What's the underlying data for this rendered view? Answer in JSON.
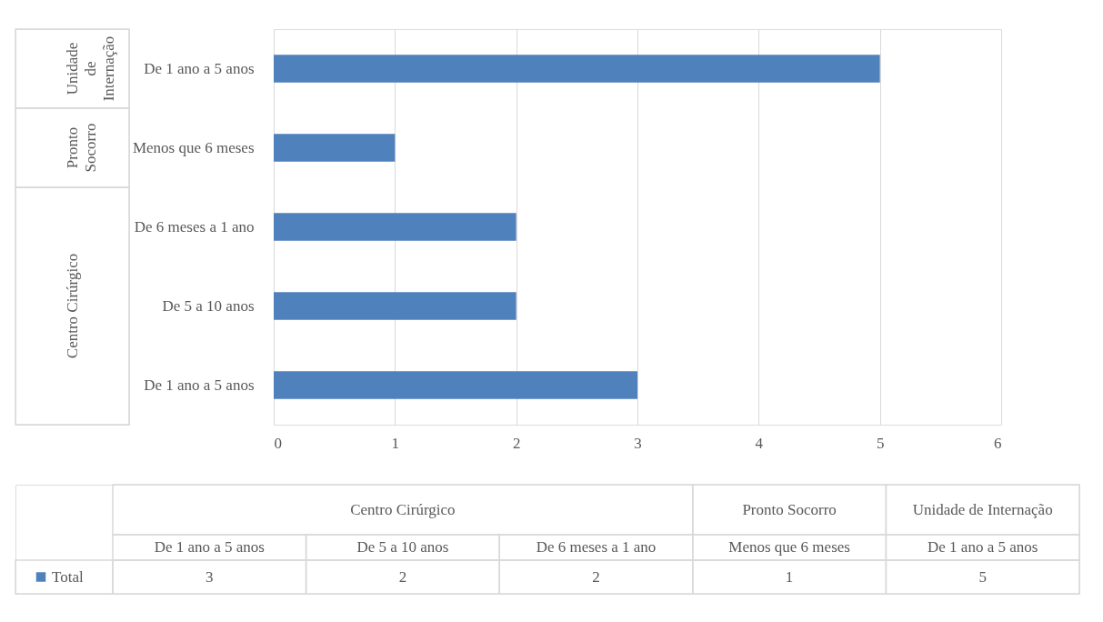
{
  "chart_data": [
    {
      "type": "bar",
      "orientation": "horizontal",
      "categories": [
        "De 1 ano a 5 anos",
        "Menos que 6 meses",
        "De 6 meses a 1 ano",
        "De 5 a 10 anos",
        "De 1 ano a 5 anos"
      ],
      "series": [
        {
          "color": "#4f81bd",
          "values": [
            5,
            1,
            2,
            2,
            3
          ]
        }
      ],
      "xlim": [
        0,
        6
      ],
      "xticks": [
        0,
        1,
        2,
        3,
        4,
        5,
        6
      ],
      "grid": "x",
      "annotations": [
        "Unidade de Internação",
        "Pronto Socorro",
        "Centro Cirúrgico"
      ]
    },
    {
      "type": "other",
      "categories": [
        "De 1 ano a 5 anos",
        "De 5 a 10 anos",
        "De 6 meses a 1 ano",
        "Menos que 6 meses",
        "De 1 ano a 5 anos"
      ],
      "series": [
        {
          "name": "Total",
          "color": "#4f81bd",
          "values": [
            3,
            2,
            2,
            1,
            5
          ]
        }
      ],
      "legend": "left",
      "data_labels": true,
      "annotations": [
        "Centro Cirúrgico",
        "Pronto Socorro",
        "Unidade de Internação"
      ]
    }
  ]
}
